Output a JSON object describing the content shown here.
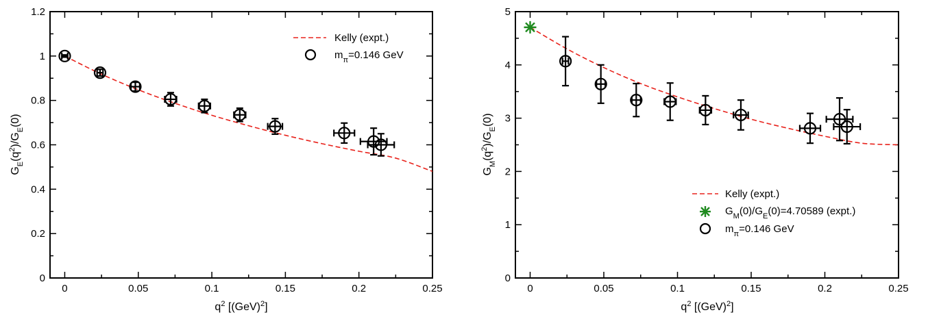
{
  "chart_data": [
    {
      "type": "scatter",
      "title": "",
      "xlabel": {
        "main": "q",
        "sup": "2",
        "rest": " [(GeV)",
        "sup2": "2",
        "end": "]"
      },
      "ylabel": {
        "p1": "G",
        "sub1": "E",
        "p2": "(q",
        "sup": "2",
        "p3": ")/G",
        "sub2": "E",
        "p4": "(0)"
      },
      "xlim": [
        -0.01,
        0.25
      ],
      "ylim": [
        0,
        1.2
      ],
      "xticks": [
        "0",
        "0.05",
        "0.1",
        "0.15",
        "0.2",
        "0.25"
      ],
      "xtick_values": [
        0,
        0.05,
        0.1,
        0.15,
        0.2,
        0.25
      ],
      "yticks": [
        "0",
        "0.2",
        "0.4",
        "0.6",
        "0.8",
        "1",
        "1.2"
      ],
      "ytick_values": [
        0,
        0.2,
        0.4,
        0.6,
        0.8,
        1.0,
        1.2
      ],
      "legend_position": "top-right",
      "legend": [
        {
          "kind": "dashed-line",
          "label": "Kelly (expt.)"
        },
        {
          "kind": "circle",
          "label_main": "m",
          "label_sub": "π",
          "label_rest": "=0.146 GeV"
        }
      ],
      "series": [
        {
          "name": "Kelly (expt.)",
          "kind": "curve",
          "color": "#e8221b",
          "x": [
            0,
            0.025,
            0.05,
            0.075,
            0.1,
            0.125,
            0.15,
            0.175,
            0.2,
            0.225,
            0.25
          ],
          "y": [
            1.0,
            0.918,
            0.848,
            0.787,
            0.733,
            0.686,
            0.643,
            0.605,
            0.571,
            0.54,
            0.48
          ]
        },
        {
          "name": "m_π=0.146 GeV",
          "kind": "points",
          "color": "#000000",
          "points": [
            {
              "x": 0.0,
              "y": 1.0,
              "xerr": 0.002,
              "yerr": 0.005
            },
            {
              "x": 0.024,
              "y": 0.925,
              "xerr": 0.002,
              "yerr": 0.015
            },
            {
              "x": 0.048,
              "y": 0.862,
              "xerr": 0.003,
              "yerr": 0.02
            },
            {
              "x": 0.072,
              "y": 0.805,
              "xerr": 0.004,
              "yerr": 0.03
            },
            {
              "x": 0.095,
              "y": 0.775,
              "xerr": 0.004,
              "yerr": 0.03
            },
            {
              "x": 0.119,
              "y": 0.735,
              "xerr": 0.004,
              "yerr": 0.03
            },
            {
              "x": 0.143,
              "y": 0.683,
              "xerr": 0.005,
              "yerr": 0.035
            },
            {
              "x": 0.19,
              "y": 0.653,
              "xerr": 0.007,
              "yerr": 0.045
            },
            {
              "x": 0.21,
              "y": 0.615,
              "xerr": 0.009,
              "yerr": 0.06
            },
            {
              "x": 0.215,
              "y": 0.6,
              "xerr": 0.009,
              "yerr": 0.05
            }
          ]
        }
      ]
    },
    {
      "type": "scatter",
      "title": "",
      "xlabel": {
        "main": "q",
        "sup": "2",
        "rest": " [(GeV)",
        "sup2": "2",
        "end": "]"
      },
      "ylabel": {
        "p1": "G",
        "sub1": "M",
        "p2": "(q",
        "sup": "2",
        "p3": ")/G",
        "sub2": "E",
        "p4": "(0)"
      },
      "xlim": [
        -0.01,
        0.25
      ],
      "ylim": [
        0,
        5
      ],
      "xticks": [
        "0",
        "0.05",
        "0.1",
        "0.15",
        "0.2",
        "0.25"
      ],
      "xtick_values": [
        0,
        0.05,
        0.1,
        0.15,
        0.2,
        0.25
      ],
      "yticks": [
        "0",
        "1",
        "2",
        "3",
        "4",
        "5"
      ],
      "ytick_values": [
        0,
        1,
        2,
        3,
        4,
        5
      ],
      "legend_position": "bottom-right",
      "legend": [
        {
          "kind": "dashed-line",
          "label": "Kelly (expt.)"
        },
        {
          "kind": "star",
          "label_a": "G",
          "label_sub_a": "M",
          "label_b": "(0)/G",
          "label_sub_b": "E",
          "label_c": "(0)=4.70589 (expt.)"
        },
        {
          "kind": "circle",
          "label_main": "m",
          "label_sub": "π",
          "label_rest": "=0.146 GeV"
        }
      ],
      "series": [
        {
          "name": "Kelly (expt.)",
          "kind": "curve",
          "color": "#e8221b",
          "x": [
            0,
            0.025,
            0.05,
            0.075,
            0.1,
            0.125,
            0.15,
            0.175,
            0.2,
            0.225,
            0.25
          ],
          "y": [
            4.706,
            4.3,
            3.95,
            3.65,
            3.4,
            3.18,
            2.98,
            2.81,
            2.66,
            2.53,
            2.5
          ]
        },
        {
          "name": "G_M(0)/G_E(0)=4.70589 (expt.)",
          "kind": "star",
          "color": "#1f8a1f",
          "x": 0,
          "y": 4.706
        },
        {
          "name": "m_π=0.146 GeV",
          "kind": "points",
          "color": "#000000",
          "points": [
            {
              "x": 0.024,
              "y": 4.07,
              "xerr": 0.002,
              "yerr": 0.46
            },
            {
              "x": 0.048,
              "y": 3.64,
              "xerr": 0.003,
              "yerr": 0.36
            },
            {
              "x": 0.072,
              "y": 3.34,
              "xerr": 0.003,
              "yerr": 0.31
            },
            {
              "x": 0.095,
              "y": 3.31,
              "xerr": 0.004,
              "yerr": 0.35
            },
            {
              "x": 0.119,
              "y": 3.15,
              "xerr": 0.004,
              "yerr": 0.27
            },
            {
              "x": 0.143,
              "y": 3.06,
              "xerr": 0.005,
              "yerr": 0.28
            },
            {
              "x": 0.19,
              "y": 2.81,
              "xerr": 0.007,
              "yerr": 0.28
            },
            {
              "x": 0.21,
              "y": 2.98,
              "xerr": 0.009,
              "yerr": 0.4
            },
            {
              "x": 0.215,
              "y": 2.84,
              "xerr": 0.009,
              "yerr": 0.32
            }
          ]
        }
      ]
    }
  ]
}
